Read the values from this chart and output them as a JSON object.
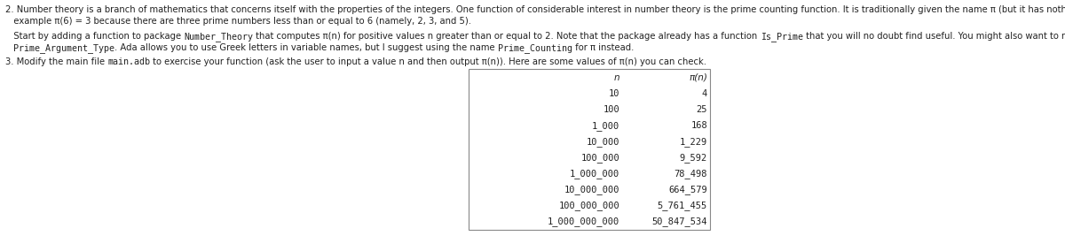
{
  "background_color": "#ffffff",
  "text_color": "#222222",
  "line1": "2. Number theory is a branch of mathematics that concerns itself with the properties of the integers. One function of considerable interest in number theory is the prime counting function. It is traditionally given the name π (but it has nothing to do with circles). For",
  "line2": "   example π(6) = 3 because there are three prime numbers less than or equal to 6 (namely, 2, 3, and 5).",
  "line3a": "   Start by adding a function to package ",
  "line3b": "Number_Theory",
  "line3c": " that computes π(n) for positive values n greater than or equal to 2. Note that the package already has a function ",
  "line3d": "Is_Prime",
  "line3e": " that you will no doubt find useful. You might also want to make use of the defined subtype",
  "line4a": "   ",
  "line4b": "Prime_Argument_Type",
  "line4c": ". Ada allows you to use Greek letters in variable names, but I suggest using the name ",
  "line4d": "Prime_Counting",
  "line4e": " for π instead.",
  "line5a": "3. Modify the main file ",
  "line5b": "main.adb",
  "line5c": " to exercise your function (ask the user to input a value n and then output π(n)). Here are some values of π(n) you can check.",
  "table_header_n": "n",
  "table_header_pi": "π(n)",
  "table_n": [
    "10",
    "100",
    "1_000",
    "10_000",
    "100_000",
    "1_000_000",
    "10_000_000",
    "100_000_000",
    "1_000_000_000"
  ],
  "table_pi": [
    "4",
    "25",
    "168",
    "1_229",
    "9_592",
    "78_498",
    "664_579",
    "5_761_455",
    "50_847_534"
  ],
  "font_size_main": 7.2,
  "font_size_table": 7.5,
  "serif_font": "DejaVu Sans",
  "mono_font": "DejaVu Sans Mono"
}
